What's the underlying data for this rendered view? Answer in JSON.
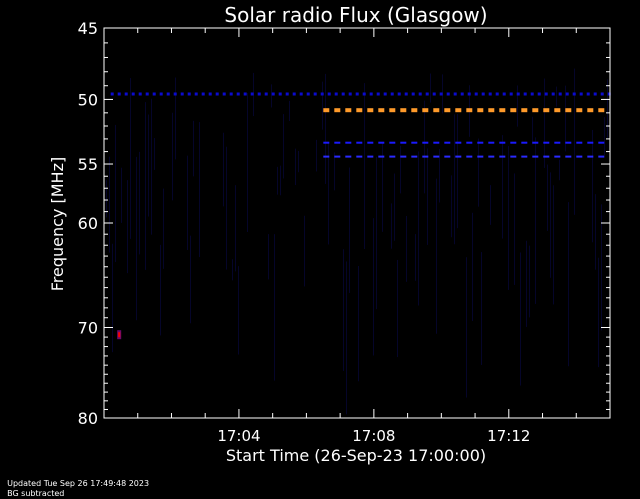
{
  "chart_data": {
    "type": "heatmap",
    "title": "Solar radio Flux (Glasgow)",
    "xlabel": "Start Time (26-Sep-23 17:00:00)",
    "ylabel": "Frequency [MHz]",
    "x_range_minutes": [
      0,
      15
    ],
    "x_ticks": [
      {
        "minute": 4,
        "label": "17:04"
      },
      {
        "minute": 8,
        "label": "17:08"
      },
      {
        "minute": 12,
        "label": "17:12"
      }
    ],
    "ylim": [
      45,
      80
    ],
    "y_scale": "log",
    "y_ticks": [
      45,
      50,
      55,
      60,
      70,
      80
    ],
    "background": "#000000",
    "features": [
      {
        "kind": "band",
        "freq_mhz": 49.6,
        "start_min": 0.2,
        "end_min": 15.0,
        "color": "#0b0bd0",
        "intensity": "low"
      },
      {
        "kind": "band",
        "freq_mhz": 50.8,
        "start_min": 6.5,
        "end_min": 14.8,
        "color": "#ff9a2a",
        "intensity": "high"
      },
      {
        "kind": "band",
        "freq_mhz": 53.3,
        "start_min": 6.5,
        "end_min": 14.8,
        "color": "#1a1aff",
        "intensity": "medium"
      },
      {
        "kind": "band",
        "freq_mhz": 54.4,
        "start_min": 6.5,
        "end_min": 14.8,
        "color": "#2a2aff",
        "intensity": "medium"
      },
      {
        "kind": "spot",
        "freq_mhz": 70.8,
        "minute": 0.45,
        "color": "#ff0000",
        "intensity": "high"
      }
    ]
  },
  "footer": {
    "updated": "Updated Tue Sep 26 17:49:48 2023",
    "note": "BG subtracted"
  }
}
